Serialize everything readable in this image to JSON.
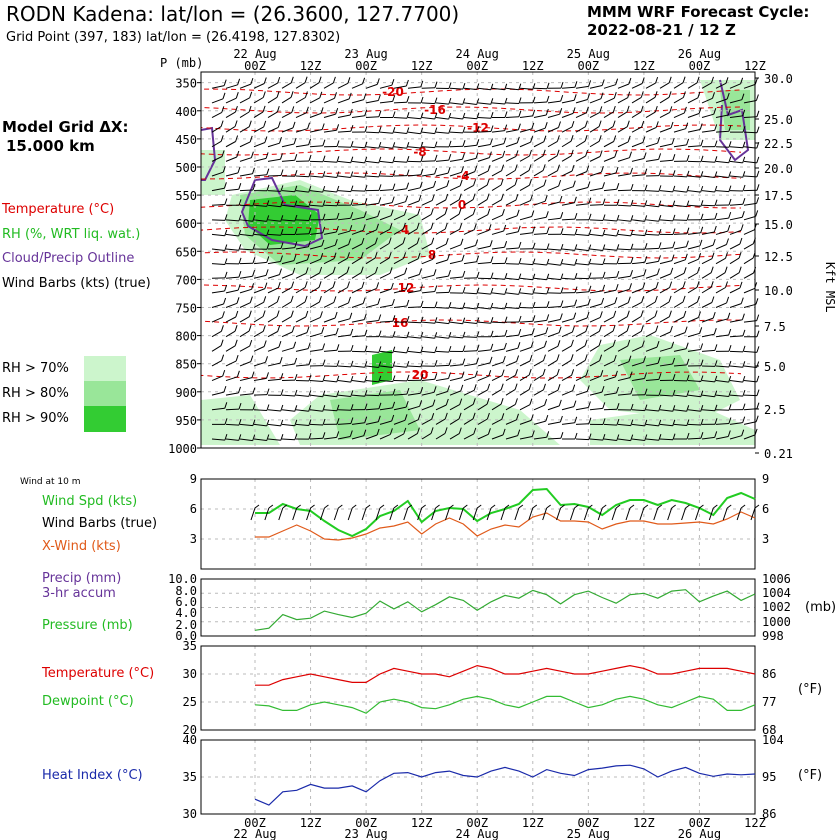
{
  "header": {
    "title": "RODN Kadena:  lat/lon = (26.3600, 127.7700)",
    "subtitle": "Grid Point (397, 183) lat/lon = (26.4198, 127.8302)",
    "cycle_line1": "MMM WRF Forecast Cycle:",
    "cycle_line2": "2022-08-21 / 12  Z",
    "grid_label_line1": "Model Grid ΔX:",
    "grid_label_line2": "15.000 km"
  },
  "legend": {
    "temperature": "Temperature (°C)",
    "rh": "RH (%, WRT liq. wat.)",
    "cloud": "Cloud/Precip Outline",
    "barbs": "Wind Barbs (kts) (true)",
    "rh70": "RH > 70%",
    "rh80": "RH > 80%",
    "rh90": "RH > 90%",
    "wind10m": "Wind at 10 m",
    "wind_spd": "Wind Spd (kts)",
    "wind_barbs": "Wind Barbs (true)",
    "xwind": "X-Wind (kts)",
    "precip": "Precip (mm)",
    "precip2": "3-hr accum",
    "pressure": "Pressure (mb)",
    "temp_sfc": "Temperature (°C)",
    "dewpoint": "Dewpoint (°C)",
    "heat_index": "Heat Index (°C)",
    "mb_unit": "(mb)",
    "f_unit1": "(°F)",
    "f_unit2": "(°F)"
  },
  "colors": {
    "temperature": "#dd0000",
    "rh70": "#ccf5cc",
    "rh80": "#99e699",
    "rh90": "#33cc33",
    "cloud": "#663399",
    "wind_spd": "#22cc22",
    "xwind": "#e05a1a",
    "pressure": "#33aa33",
    "dewpoint": "#33bb33",
    "heat_index": "#1a2aaa"
  },
  "time_axis": {
    "day_labels": [
      "22 Aug",
      "23 Aug",
      "24 Aug",
      "25 Aug",
      "26 Aug"
    ],
    "hour_labels": [
      "00Z",
      "12Z",
      "00Z",
      "12Z",
      "00Z",
      "12Z",
      "00Z",
      "12Z",
      "00Z",
      "12Z"
    ]
  },
  "chart_data": [
    {
      "type": "heatmap",
      "name": "cross-section",
      "ylabel": "P (mb)",
      "y2label": "Kft MSL",
      "pressure_levels": [
        350,
        400,
        450,
        500,
        550,
        600,
        650,
        700,
        750,
        800,
        850,
        900,
        950,
        1000
      ],
      "height_labels": [
        "30.0",
        "25.0",
        "22.5",
        "20.0",
        "17.5",
        "15.0",
        "12.5",
        "10.0",
        "7.5",
        "5.0",
        "2.5",
        "0.21"
      ],
      "isotherm_labels": [
        "-20",
        "-16",
        "-12",
        "-8",
        "-4",
        "0",
        "4",
        "8",
        "12",
        "16",
        "20"
      ]
    },
    {
      "type": "line",
      "name": "wind",
      "yticks_left": [
        "9",
        "6",
        "3"
      ],
      "yticks_right": [
        "9",
        "6",
        "3"
      ],
      "ylim": [
        0,
        9
      ],
      "x_hours": [
        0,
        3,
        6,
        9,
        12,
        15,
        18,
        21,
        24,
        27,
        30,
        33,
        36,
        39,
        42,
        45,
        48,
        51,
        54,
        57,
        60,
        63,
        66,
        69,
        72,
        75,
        78,
        81,
        84,
        87,
        90,
        93,
        96,
        99,
        102,
        105,
        108
      ],
      "series": [
        {
          "name": "Wind Spd (kts)",
          "values": [
            5.6,
            5.6,
            6.5,
            6.0,
            5.8,
            4.8,
            3.9,
            3.3,
            4.0,
            5.3,
            5.8,
            6.8,
            4.7,
            5.8,
            6.1,
            6.0,
            4.8,
            5.6,
            6.0,
            6.5,
            7.9,
            8.0,
            6.4,
            6.5,
            6.2,
            5.4,
            6.4,
            6.9,
            6.9,
            6.4,
            6.9,
            6.6,
            6.1,
            5.4,
            7.1,
            7.6,
            7.0
          ]
        },
        {
          "name": "X-Wind (kts)",
          "values": [
            3.2,
            3.2,
            3.8,
            4.4,
            3.8,
            3.0,
            2.9,
            3.1,
            3.5,
            4.1,
            4.3,
            4.7,
            3.5,
            4.5,
            5.1,
            4.5,
            3.3,
            4.0,
            4.4,
            4.2,
            5.2,
            5.6,
            4.8,
            4.8,
            4.7,
            4.0,
            4.5,
            4.8,
            4.8,
            4.5,
            4.5,
            4.6,
            4.7,
            4.5,
            5.0,
            5.7,
            5.1
          ]
        }
      ]
    },
    {
      "type": "line",
      "name": "precip-pressure",
      "yticks_left": [
        "10.0",
        "8.0",
        "6.0",
        "4.0",
        "2.0",
        "0.0"
      ],
      "yticks_right": [
        "1006",
        "1004",
        "1002",
        "1000",
        "998"
      ],
      "ylim": [
        998,
        1006
      ],
      "x_hours": [
        0,
        3,
        6,
        9,
        12,
        15,
        18,
        21,
        24,
        27,
        30,
        33,
        36,
        39,
        42,
        45,
        48,
        51,
        54,
        57,
        60,
        63,
        66,
        69,
        72,
        75,
        78,
        81,
        84,
        87,
        90,
        93,
        96,
        99,
        102,
        105,
        108
      ],
      "series": [
        {
          "name": "Pressure (mb)",
          "values": [
            998.8,
            999.1,
            1001.0,
            1000.3,
            1000.5,
            1001.5,
            1001.0,
            1000.6,
            1001.2,
            1002.9,
            1001.8,
            1002.8,
            1001.4,
            1002.4,
            1003.5,
            1003.0,
            1001.6,
            1002.8,
            1003.7,
            1003.3,
            1004.4,
            1003.8,
            1002.5,
            1003.8,
            1004.3,
            1003.4,
            1002.6,
            1003.8,
            1004.0,
            1003.3,
            1004.3,
            1004.5,
            1002.8,
            1003.6,
            1004.3,
            1003.0,
            1003.9
          ]
        }
      ]
    },
    {
      "type": "line",
      "name": "temperature-dewpoint",
      "yticks_left": [
        "35",
        "30",
        "25",
        "20"
      ],
      "yticks_right": [
        "86",
        "77",
        "68"
      ],
      "ylim": [
        20,
        35
      ],
      "x_hours": [
        0,
        3,
        6,
        9,
        12,
        15,
        18,
        21,
        24,
        27,
        30,
        33,
        36,
        39,
        42,
        45,
        48,
        51,
        54,
        57,
        60,
        63,
        66,
        69,
        72,
        75,
        78,
        81,
        84,
        87,
        90,
        93,
        96,
        99,
        102,
        105,
        108
      ],
      "series": [
        {
          "name": "Temperature (°C)",
          "values": [
            28.0,
            28.0,
            29.0,
            29.5,
            30.0,
            29.5,
            29.0,
            28.5,
            28.5,
            30.0,
            31.0,
            30.5,
            30.0,
            30.0,
            29.5,
            30.5,
            31.5,
            31.0,
            30.0,
            30.0,
            30.5,
            31.0,
            30.5,
            30.0,
            30.0,
            30.5,
            31.0,
            31.5,
            31.0,
            30.0,
            30.0,
            30.5,
            31.0,
            31.0,
            31.0,
            30.5,
            30.0
          ]
        },
        {
          "name": "Dewpoint (°C)",
          "values": [
            24.5,
            24.3,
            23.5,
            23.5,
            24.5,
            25.0,
            24.5,
            24.0,
            23.0,
            25.0,
            25.5,
            25.0,
            24.0,
            23.8,
            24.5,
            25.5,
            26.0,
            25.5,
            24.5,
            24.0,
            25.0,
            26.0,
            26.0,
            25.0,
            24.0,
            24.5,
            25.5,
            26.0,
            25.5,
            24.5,
            24.0,
            25.0,
            26.0,
            25.5,
            23.5,
            23.5,
            24.5
          ]
        }
      ]
    },
    {
      "type": "line",
      "name": "heat-index",
      "yticks_left": [
        "40",
        "35",
        "30"
      ],
      "yticks_right": [
        "104",
        "95",
        "86"
      ],
      "ylim": [
        30,
        40
      ],
      "x_hours": [
        0,
        3,
        6,
        9,
        12,
        15,
        18,
        21,
        24,
        27,
        30,
        33,
        36,
        39,
        42,
        45,
        48,
        51,
        54,
        57,
        60,
        63,
        66,
        69,
        72,
        75,
        78,
        81,
        84,
        87,
        90,
        93,
        96,
        99,
        102,
        105,
        108
      ],
      "series": [
        {
          "name": "Heat Index (°C)",
          "values": [
            32.0,
            31.2,
            33.0,
            33.2,
            34.0,
            33.5,
            33.5,
            33.8,
            33.0,
            34.5,
            35.5,
            35.6,
            35.0,
            35.6,
            35.8,
            35.2,
            35.0,
            35.8,
            36.3,
            35.8,
            35.0,
            36.0,
            35.5,
            35.2,
            36.0,
            36.2,
            36.5,
            36.6,
            36.1,
            35.0,
            35.8,
            36.3,
            35.5,
            35.1,
            35.4,
            35.3,
            35.4
          ]
        }
      ]
    }
  ]
}
